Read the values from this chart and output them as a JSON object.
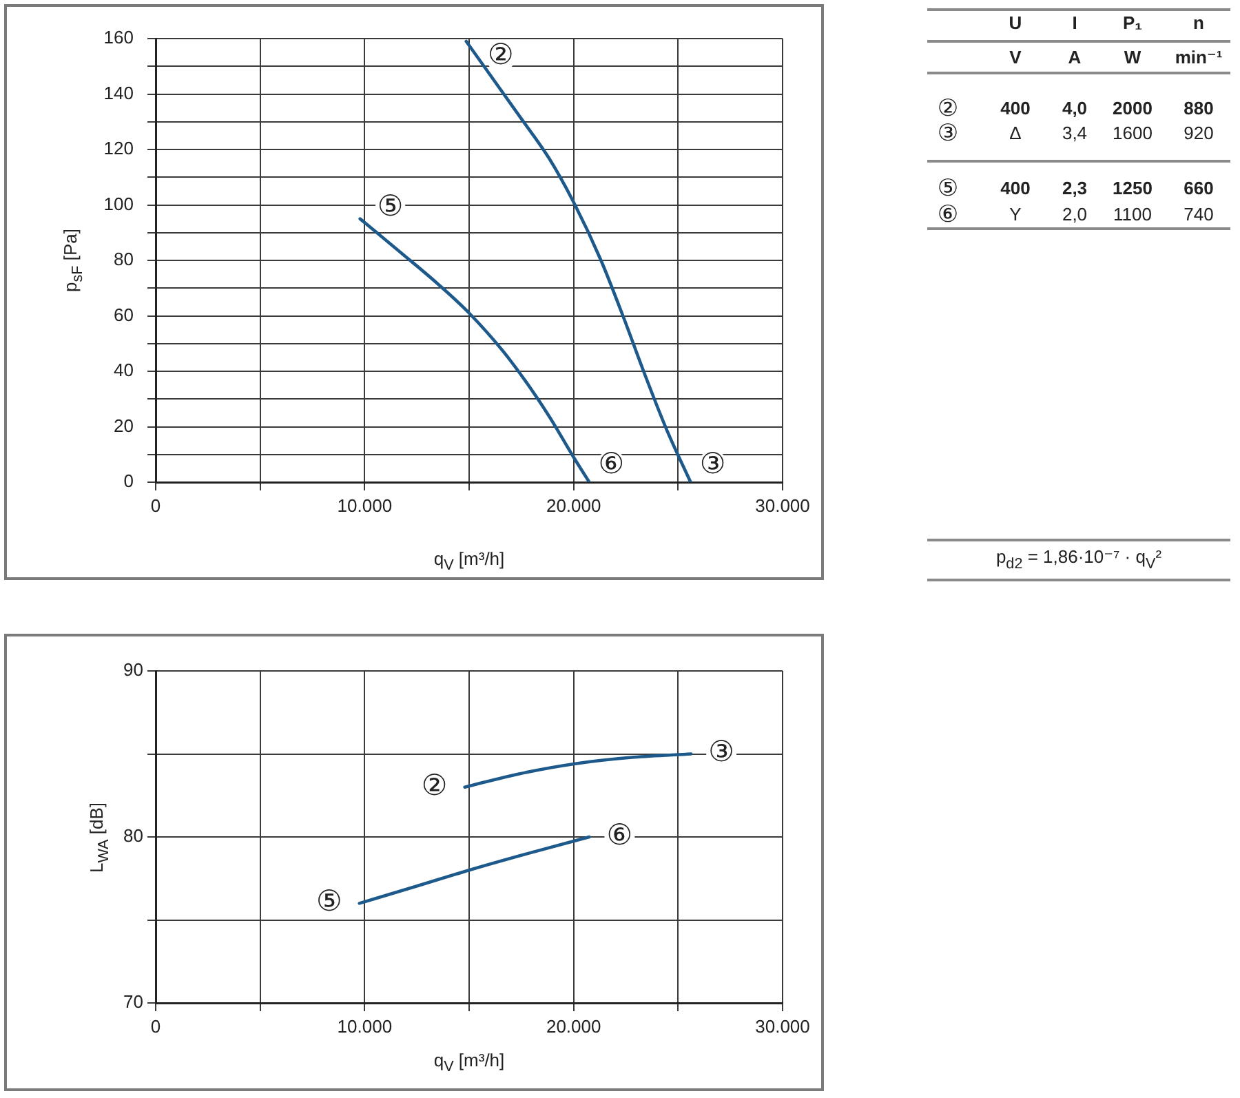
{
  "chart_data": [
    {
      "type": "line",
      "xlabel": "q$_{V}$ [m³/h]",
      "ylabel": "p$_{sF}$ [Pa]",
      "xlim": [
        0,
        30000
      ],
      "ylim": [
        0,
        160
      ],
      "xticks": [
        0,
        {
          "value": 5000,
          "label": null
        },
        {
          "value": 10000,
          "label": "10.000"
        },
        {
          "value": 15000,
          "label": null
        },
        {
          "value": 20000,
          "label": "20.000"
        },
        {
          "value": 25000,
          "label": null
        },
        {
          "value": 30000,
          "label": "30.000"
        }
      ],
      "yticks": [
        0,
        {
          "value": 10,
          "label": null
        },
        20,
        {
          "value": 30,
          "label": null
        },
        40,
        {
          "value": 50,
          "label": null
        },
        60,
        {
          "value": 70,
          "label": null
        },
        80,
        {
          "value": 90,
          "label": null
        },
        100,
        {
          "value": 110,
          "label": null
        },
        120,
        {
          "value": 130,
          "label": null
        },
        140,
        {
          "value": 150,
          "label": null
        },
        160
      ],
      "grid": true,
      "line_style": "solid",
      "series": [
        {
          "color": "#1d5a8b",
          "x": [
            14860,
            17410,
            18810,
            20000,
            21310,
            22410,
            23400,
            24450,
            25600
          ],
          "values": [
            159,
            132,
            117,
            101,
            80,
            59,
            39,
            19,
            0
          ]
        },
        {
          "color": "#1d5a8b",
          "x": [
            9780,
            11860,
            13430,
            15000,
            16860,
            18810,
            20000,
            20750
          ],
          "values": [
            95,
            82,
            72,
            61,
            45,
            24,
            9,
            0
          ]
        }
      ],
      "annotations": [
        {
          "text": "②",
          "x": 14860,
          "y": 159
        },
        {
          "text": "③",
          "x": 25600,
          "y": 0
        },
        {
          "text": "⑤",
          "x": 9780,
          "y": 95
        },
        {
          "text": "⑥",
          "x": 20750,
          "y": 0
        }
      ]
    },
    {
      "type": "other",
      "annotations": [
        "U",
        "I",
        "P₁",
        "n",
        "V",
        "A",
        "W",
        "min⁻¹",
        "②",
        "400",
        "4,0",
        "2000",
        "880",
        "③",
        "Δ",
        "3,4",
        "1600",
        "920",
        "⑤",
        "400",
        "2,3",
        "1250",
        "660",
        "⑥",
        "Y",
        "2,0",
        "1100",
        "740",
        "p$_{d2}$ = 1,86·10⁻⁷ · q$_{V}$²"
      ]
    },
    {
      "type": "line",
      "xlabel": "q$_{V}$ [m³/h]",
      "ylabel": "L$_{WA}$ [dB]",
      "xlim": [
        0,
        30000
      ],
      "ylim": [
        70,
        90
      ],
      "xticks": [
        0,
        {
          "value": 5000,
          "label": null
        },
        {
          "value": 10000,
          "label": "10.000"
        },
        {
          "value": 15000,
          "label": null
        },
        {
          "value": 20000,
          "label": "20.000"
        },
        {
          "value": 25000,
          "label": null
        },
        {
          "value": 30000,
          "label": "30.000"
        }
      ],
      "yticks": [
        70,
        {
          "value": 75,
          "label": null
        },
        80,
        {
          "value": 85,
          "label": null
        },
        90
      ],
      "grid": true,
      "line_style": "solid",
      "series": [
        {
          "color": "#1d5a8b",
          "x": [
            14790,
            17390,
            20020,
            22880,
            25620
          ],
          "values": [
            83.0,
            83.8,
            84.4,
            84.8,
            85.0
          ]
        },
        {
          "color": "#1d5a8b",
          "x": [
            9750,
            12400,
            15000,
            17800,
            20750
          ],
          "values": [
            76.0,
            77.0,
            78.0,
            79.0,
            80.0
          ]
        }
      ],
      "annotations": [
        {
          "text": "②",
          "x": 14790,
          "y": 83.0
        },
        {
          "text": "③",
          "x": 25620,
          "y": 85.0
        },
        {
          "text": "⑤",
          "x": 9750,
          "y": 76.0
        },
        {
          "text": "⑥",
          "x": 20750,
          "y": 80.0
        }
      ]
    }
  ]
}
